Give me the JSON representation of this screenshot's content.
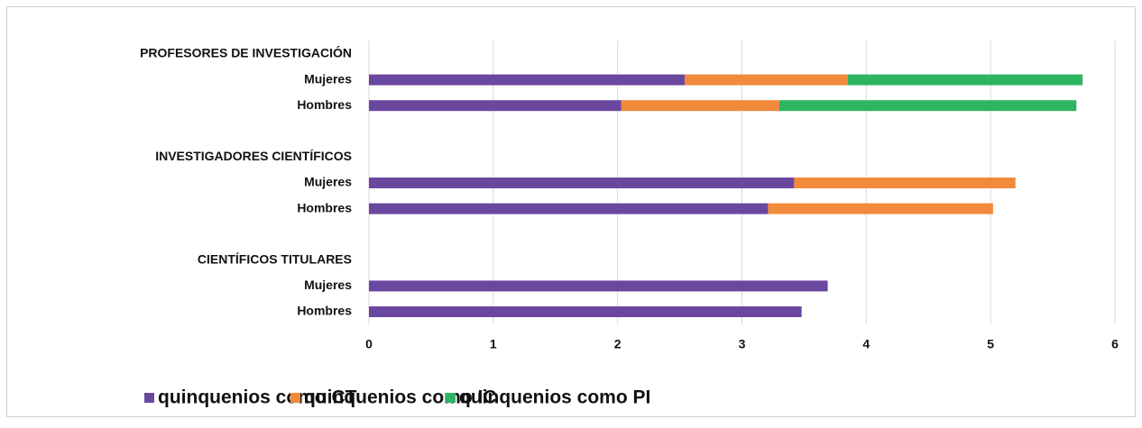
{
  "chart_data": {
    "type": "stacked-barh",
    "categories": [
      "PROFESORES DE INVESTIGACIÓN",
      "Mujeres",
      "Hombres",
      null,
      "INVESTIGADORES CIENTÍFICOS",
      "Mujeres",
      "Hombres",
      null,
      "CIENTÍFICOS TITULARES",
      "Mujeres",
      "Hombres"
    ],
    "series": [
      {
        "name": "quinquenios como CT",
        "color": "#6b48a0",
        "values": [
          null,
          2.54,
          2.03,
          null,
          null,
          3.42,
          3.21,
          null,
          null,
          3.69,
          3.48
        ]
      },
      {
        "name": "quinquenios como IC",
        "color": "#f28a3c",
        "values": [
          null,
          1.31,
          1.27,
          null,
          null,
          1.78,
          1.81,
          null,
          null,
          null,
          null
        ]
      },
      {
        "name": "quinquenios como PI",
        "color": "#2eb562",
        "values": [
          null,
          1.89,
          2.39,
          null,
          null,
          null,
          null,
          null,
          null,
          null,
          null
        ]
      }
    ],
    "xlim": [
      0,
      6
    ],
    "xticks": [
      0,
      1,
      2,
      3,
      4,
      5,
      6
    ],
    "grid": true,
    "legend": "bottom"
  }
}
